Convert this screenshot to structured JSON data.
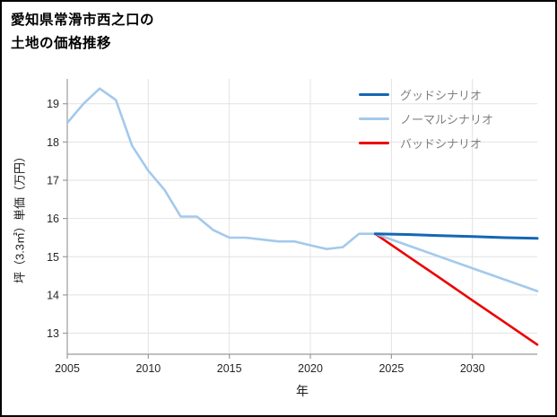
{
  "page": {
    "title_line1": "愛知県常滑市西之口の",
    "title_line2": "土地の価格推移"
  },
  "chart_data": {
    "type": "line",
    "title": "愛知県常滑市西之口の土地の価格推移",
    "xlabel": "年",
    "ylabel": "坪（3.3㎡）単価（万円）",
    "xlim": [
      2005,
      2034
    ],
    "ylim": [
      12.45,
      19.65
    ],
    "x_ticks": [
      2005,
      2010,
      2015,
      2020,
      2025,
      2030
    ],
    "y_ticks": [
      13,
      14,
      15,
      16,
      17,
      18,
      19
    ],
    "grid": true,
    "legend_position": "upper right",
    "colors": {
      "good": "#1467b4",
      "normal": "#a3c9ec",
      "bad": "#ec0000",
      "grid": "#e2e2e2",
      "spine": "#9b9b9b",
      "tick_label": "#262626",
      "legend_text": "#808080",
      "background": "#ffffff",
      "frame": "#000000"
    },
    "series": [
      {
        "name": "グッドシナリオ",
        "color": "#1467b4",
        "linewidth": 3,
        "x": [
          2024,
          2026,
          2028,
          2030,
          2032,
          2034
        ],
        "values": [
          15.6,
          15.58,
          15.55,
          15.53,
          15.5,
          15.48
        ]
      },
      {
        "name": "ノーマルシナリオ",
        "color": "#a3c9ec",
        "linewidth": 2.6,
        "x": [
          2005,
          2006,
          2007,
          2008,
          2009,
          2010,
          2011,
          2012,
          2013,
          2014,
          2015,
          2016,
          2017,
          2018,
          2019,
          2020,
          2021,
          2022,
          2023,
          2024,
          2026,
          2028,
          2030,
          2032,
          2034
        ],
        "values": [
          18.5,
          19.0,
          19.4,
          19.1,
          17.9,
          17.25,
          16.75,
          16.05,
          16.05,
          15.7,
          15.5,
          15.5,
          15.45,
          15.4,
          15.4,
          15.3,
          15.2,
          15.25,
          15.6,
          15.6,
          15.3,
          15.0,
          14.7,
          14.4,
          14.1
        ]
      },
      {
        "name": "バッドシナリオ",
        "color": "#ec0000",
        "linewidth": 2.6,
        "x": [
          2024,
          2026,
          2028,
          2030,
          2032,
          2034
        ],
        "values": [
          15.6,
          15.02,
          14.44,
          13.86,
          13.28,
          12.7
        ]
      }
    ]
  }
}
